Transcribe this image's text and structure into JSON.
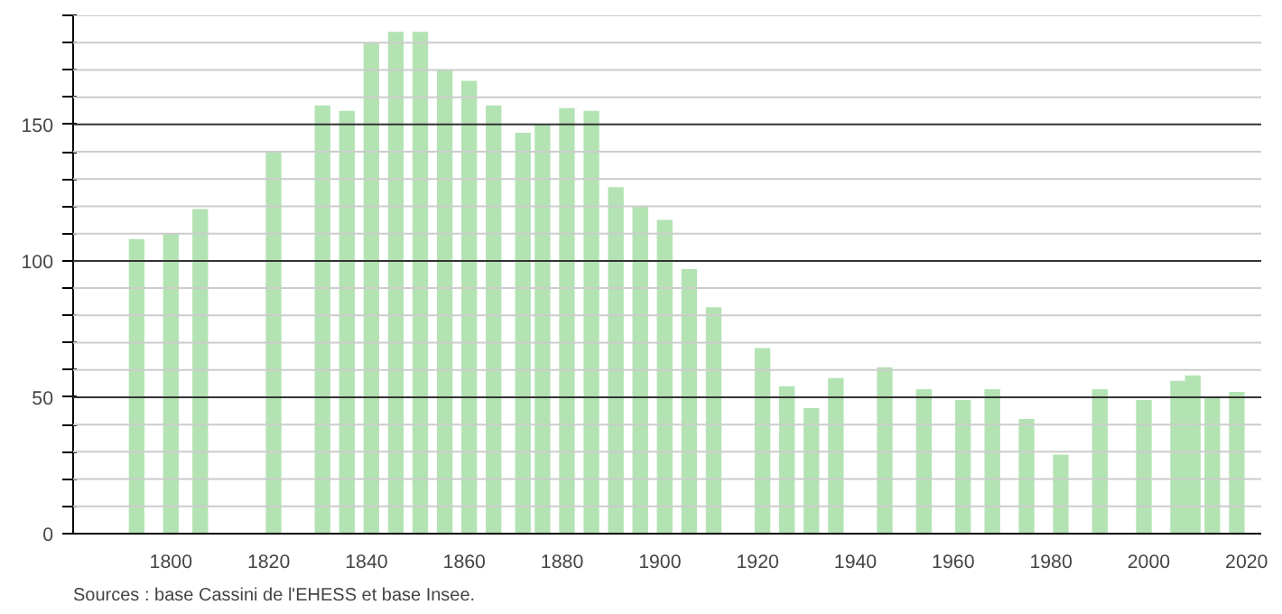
{
  "chart_data": {
    "type": "bar",
    "x": [
      1793,
      1800,
      1806,
      1821,
      1831,
      1836,
      1841,
      1846,
      1851,
      1856,
      1861,
      1866,
      1872,
      1876,
      1881,
      1886,
      1891,
      1896,
      1901,
      1906,
      1911,
      1921,
      1926,
      1931,
      1936,
      1946,
      1954,
      1962,
      1968,
      1975,
      1982,
      1990,
      1999,
      2006,
      2009,
      2013,
      2018
    ],
    "values": [
      108,
      110,
      119,
      140,
      157,
      155,
      180,
      184,
      184,
      170,
      166,
      157,
      147,
      150,
      156,
      155,
      127,
      120,
      115,
      97,
      83,
      68,
      54,
      46,
      57,
      61,
      53,
      49,
      53,
      42,
      29,
      53,
      49,
      56,
      58,
      50,
      52
    ],
    "color": "#b3e3b3",
    "xlim": [
      1780,
      2023
    ],
    "xticks": [
      1800,
      1820,
      1840,
      1860,
      1880,
      1900,
      1920,
      1940,
      1960,
      1980,
      2000,
      2020
    ],
    "ylim": [
      0,
      190
    ],
    "yticks": [
      0,
      {
        "value": 10,
        "label": null
      },
      {
        "value": 20,
        "label": null
      },
      {
        "value": 30,
        "label": null
      },
      {
        "value": 40,
        "label": null
      },
      50,
      {
        "value": 60,
        "label": null
      },
      {
        "value": 70,
        "label": null
      },
      {
        "value": 80,
        "label": null
      },
      {
        "value": 90,
        "label": null
      },
      100,
      {
        "value": 110,
        "label": null
      },
      {
        "value": 120,
        "label": null
      },
      {
        "value": 130,
        "label": null
      },
      {
        "value": 140,
        "label": null
      },
      150,
      {
        "value": 160,
        "label": null
      },
      {
        "value": 170,
        "label": null
      },
      {
        "value": 180,
        "label": null
      },
      {
        "value": 190,
        "label": null
      }
    ],
    "grid": "y",
    "annotations": [
      "Sources : base Cassini de l'EHESS et base Insee."
    ]
  }
}
